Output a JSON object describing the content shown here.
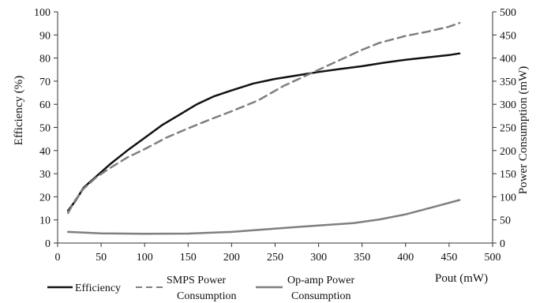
{
  "chart_data": {
    "type": "line",
    "xlabel": "Pout (mW)",
    "ylabel_left": "Efficiency (%)",
    "ylabel_right": "Power Consumption (mW)",
    "xlim": [
      0,
      500
    ],
    "ylim_left": [
      0,
      100
    ],
    "ylim_right": [
      0,
      500
    ],
    "x_ticks": [
      "0",
      "50",
      "100",
      "150",
      "200",
      "250",
      "300",
      "350",
      "400",
      "450",
      "500"
    ],
    "y_ticks_left": [
      "0",
      "10",
      "20",
      "30",
      "40",
      "50",
      "60",
      "70",
      "80",
      "90",
      "100"
    ],
    "y_ticks_right": [
      "0",
      "50",
      "100",
      "150",
      "200",
      "250",
      "300",
      "350",
      "400",
      "450",
      "500"
    ],
    "grid": false,
    "legend_position": "bottom",
    "series": [
      {
        "name": "Efficiency",
        "axis": "left",
        "color": "#111111",
        "style": "solid",
        "points": [
          [
            12,
            14
          ],
          [
            20,
            18
          ],
          [
            30,
            24
          ],
          [
            45,
            29
          ],
          [
            60,
            34
          ],
          [
            80,
            40
          ],
          [
            100,
            45.5
          ],
          [
            120,
            51
          ],
          [
            140,
            55.5
          ],
          [
            160,
            60
          ],
          [
            180,
            63.5
          ],
          [
            200,
            66
          ],
          [
            225,
            69
          ],
          [
            250,
            71
          ],
          [
            275,
            72.5
          ],
          [
            300,
            74
          ],
          [
            325,
            75.3
          ],
          [
            350,
            76.5
          ],
          [
            375,
            78
          ],
          [
            400,
            79.3
          ],
          [
            425,
            80.3
          ],
          [
            450,
            81.3
          ],
          [
            462,
            82
          ]
        ]
      },
      {
        "name_lines": [
          "SMPS Power",
          "Consumption"
        ],
        "axis": "right",
        "color": "#7f7f7f",
        "style": "dashed",
        "points": [
          [
            12,
            65
          ],
          [
            20,
            92
          ],
          [
            30,
            118
          ],
          [
            45,
            143
          ],
          [
            60,
            162
          ],
          [
            80,
            185
          ],
          [
            100,
            203
          ],
          [
            125,
            228
          ],
          [
            150,
            248
          ],
          [
            175,
            267
          ],
          [
            200,
            285
          ],
          [
            230,
            308
          ],
          [
            260,
            340
          ],
          [
            290,
            366
          ],
          [
            320,
            392
          ],
          [
            350,
            418
          ],
          [
            370,
            433
          ],
          [
            400,
            448
          ],
          [
            425,
            457
          ],
          [
            450,
            468
          ],
          [
            462,
            476
          ]
        ]
      },
      {
        "name_lines": [
          "Op-amp Power",
          "Consumption"
        ],
        "axis": "right",
        "color": "#7f7f7f",
        "style": "solid",
        "points": [
          [
            12,
            24
          ],
          [
            25,
            23
          ],
          [
            50,
            21
          ],
          [
            100,
            20
          ],
          [
            150,
            20.5
          ],
          [
            200,
            24
          ],
          [
            250,
            31
          ],
          [
            300,
            38
          ],
          [
            340,
            43
          ],
          [
            370,
            51
          ],
          [
            400,
            62
          ],
          [
            430,
            77
          ],
          [
            462,
            93
          ]
        ]
      }
    ]
  }
}
